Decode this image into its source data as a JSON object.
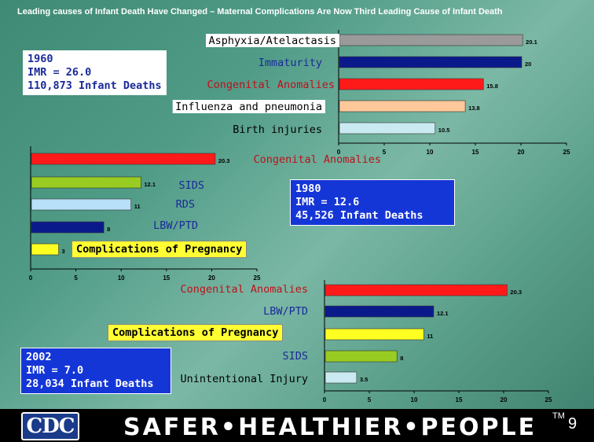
{
  "slide": {
    "title": "Leading causes of Infant Death Have Changed – Maternal Complications Are Now Third Leading Cause of Infant Death",
    "page_number": "9",
    "tagline": "SAFER•HEALTHIER•PEOPLE",
    "trademark": "TM",
    "logo_text": "CDC"
  },
  "chart_data": [
    {
      "type": "bar",
      "orientation": "horizontal",
      "year_box": [
        "1960",
        "IMR = 26.0",
        "110,873 Infant Deaths"
      ],
      "categories": [
        "Asphyxia/Atelactasis",
        "Immaturity",
        "Congenital Anomalies",
        "Influenza and pneumonia",
        "Birth injuries"
      ],
      "values": [
        20.1,
        20,
        15.8,
        13.8,
        10.5
      ],
      "data_labels": [
        "20.1",
        "20",
        "15.8",
        "13.8",
        "10.5"
      ],
      "colors": [
        "#9a9a9a",
        "#0b1a8a",
        "#ff1a1a",
        "#ffc89a",
        "#c8eaf0"
      ],
      "xlim": [
        0,
        25
      ],
      "ticks": [
        "0",
        "5",
        "10",
        "15",
        "20",
        "25"
      ],
      "grid": false
    },
    {
      "type": "bar",
      "orientation": "horizontal",
      "year_box": [
        "1980",
        "IMR = 12.6",
        "45,526 Infant Deaths"
      ],
      "categories": [
        "Congenital Anomalies",
        "SIDS",
        "RDS",
        "LBW/PTD",
        "Complications of Pregnancy"
      ],
      "values": [
        20.3,
        12.1,
        11,
        8,
        3
      ],
      "data_labels": [
        "20.3",
        "12.1",
        "11",
        "8",
        "3"
      ],
      "colors": [
        "#ff1a1a",
        "#99cc22",
        "#b8e0f8",
        "#0b1a8a",
        "#ffff22"
      ],
      "xlim": [
        0,
        25
      ],
      "ticks": [
        "0",
        "5",
        "10",
        "15",
        "20",
        "25"
      ],
      "grid": false
    },
    {
      "type": "bar",
      "orientation": "horizontal",
      "year_box": [
        "2002",
        "IMR = 7.0",
        "28,034 Infant Deaths"
      ],
      "categories": [
        "Congenital Anomalies",
        "LBW/PTD",
        "Complications of Pregnancy",
        "SIDS",
        "Unintentional Injury"
      ],
      "values": [
        20.3,
        12.1,
        11,
        8,
        3.5
      ],
      "data_labels": [
        "20.3",
        "12.1",
        "11",
        "8",
        "3.5"
      ],
      "colors": [
        "#ff1a1a",
        "#0b1a8a",
        "#ffff22",
        "#99cc22",
        "#c8eaf0"
      ],
      "xlim": [
        0,
        25
      ],
      "ticks": [
        "0",
        "5",
        "10",
        "15",
        "20",
        "25"
      ],
      "grid": false
    }
  ]
}
